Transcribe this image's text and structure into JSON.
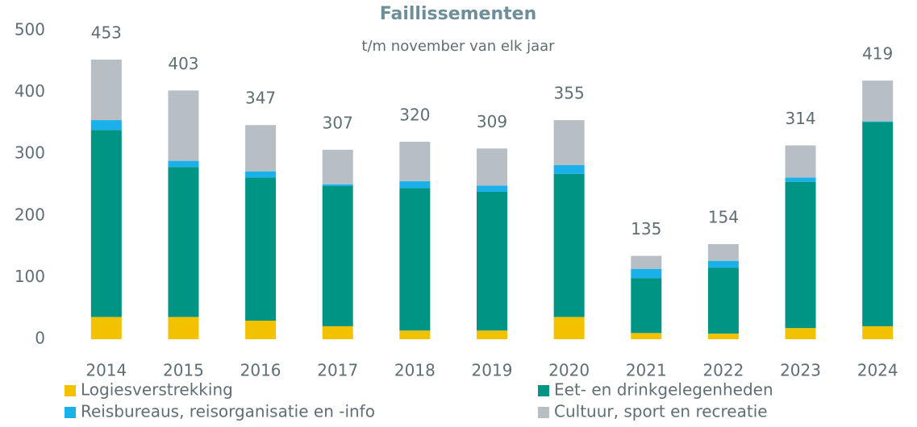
{
  "chart_data": {
    "type": "stacked_bar",
    "title": "Faillissementen",
    "subtitle": "t/m november van elk jaar",
    "categories": [
      "2014",
      "2015",
      "2016",
      "2017",
      "2018",
      "2019",
      "2020",
      "2021",
      "2022",
      "2023",
      "2024"
    ],
    "series": [
      {
        "name": "Logiesverstrekking",
        "color": "#f2c200",
        "values": [
          36,
          36,
          30,
          21,
          14,
          14,
          36,
          10,
          9,
          18,
          21
        ]
      },
      {
        "name": "Eet- en drinkgelegenheden",
        "color": "#009484",
        "values": [
          303,
          243,
          232,
          227,
          231,
          225,
          232,
          89,
          107,
          237,
          331
        ]
      },
      {
        "name": "Reisbureaus, reisorganisatie en -info",
        "color": "#1ab0ea",
        "values": [
          16,
          10,
          10,
          3,
          11,
          10,
          14,
          15,
          11,
          7,
          1
        ]
      },
      {
        "name": "Cultuur, sport en recreatie",
        "color": "#b8bfc4",
        "values": [
          98,
          114,
          75,
          56,
          64,
          60,
          73,
          21,
          27,
          52,
          66
        ]
      }
    ],
    "totals": [
      453,
      403,
      347,
      307,
      320,
      309,
      355,
      135,
      154,
      314,
      419
    ],
    "ylim": [
      0,
      500
    ],
    "yticks": [
      0,
      100,
      200,
      300,
      400,
      500
    ],
    "grid": false
  }
}
